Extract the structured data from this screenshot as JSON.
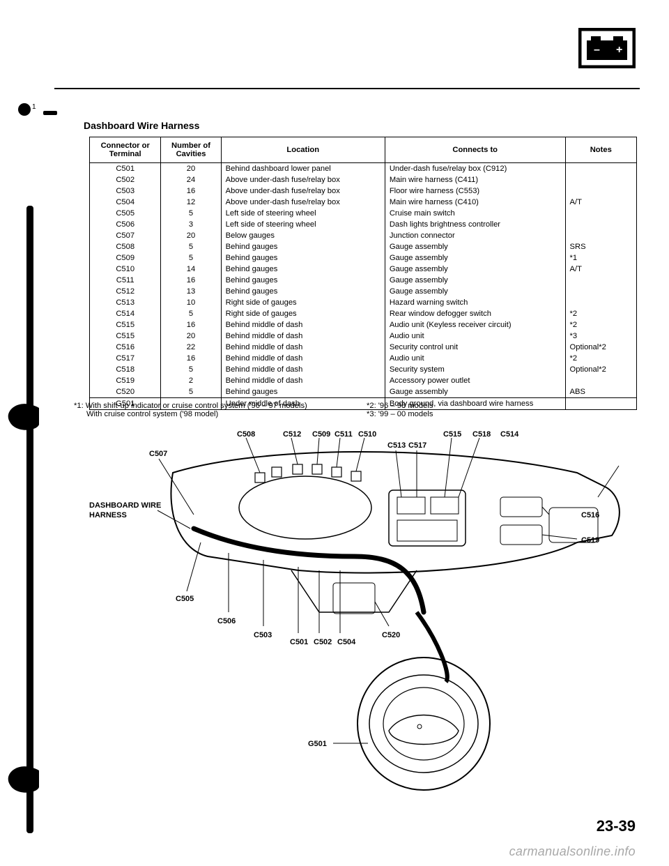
{
  "section_title": "Dashboard Wire Harness",
  "table": {
    "headers": [
      "Connector or Terminal",
      "Number of Cavities",
      "Location",
      "Connects to",
      "Notes"
    ],
    "rows": [
      [
        "C501",
        "20",
        "Behind dashboard lower panel",
        "Under-dash fuse/relay box (C912)",
        ""
      ],
      [
        "C502",
        "24",
        "Above under-dash fuse/relay box",
        "Main wire harness (C411)",
        ""
      ],
      [
        "C503",
        "16",
        "Above under-dash fuse/relay box",
        "Floor wire harness (C553)",
        ""
      ],
      [
        "C504",
        "12",
        "Above under-dash fuse/relay box",
        "Main wire harness (C410)",
        "A/T"
      ],
      [
        "C505",
        "5",
        "Left side of steering wheel",
        "Cruise main switch",
        ""
      ],
      [
        "C506",
        "3",
        "Left side of steering wheel",
        "Dash lights brightness controller",
        ""
      ],
      [
        "C507",
        "20",
        "Below gauges",
        "Junction connector",
        ""
      ],
      [
        "C508",
        "5",
        "Behind gauges",
        "Gauge assembly",
        "SRS"
      ],
      [
        "C509",
        "5",
        "Behind gauges",
        "Gauge assembly",
        "*1"
      ],
      [
        "C510",
        "14",
        "Behind gauges",
        "Gauge assembly",
        "A/T"
      ],
      [
        "C511",
        "16",
        "Behind gauges",
        "Gauge assembly",
        ""
      ],
      [
        "C512",
        "13",
        "Behind gauges",
        "Gauge assembly",
        ""
      ],
      [
        "C513",
        "10",
        "Right side of gauges",
        "Hazard warning switch",
        ""
      ],
      [
        "C514",
        "5",
        "Right side of gauges",
        "Rear window defogger switch",
        "*2"
      ],
      [
        "C515",
        "16",
        "Behind middle of dash",
        "Audio unit (Keyless receiver circuit)",
        "*2"
      ],
      [
        "C515",
        "20",
        "Behind middle of dash",
        "Audio unit",
        "*3"
      ],
      [
        "C516",
        "22",
        "Behind middle of dash",
        "Security control unit",
        "Optional*2"
      ],
      [
        "C517",
        "16",
        "Behind middle of dash",
        "Audio unit",
        "*2"
      ],
      [
        "C518",
        "5",
        "Behind middle of dash",
        "Security system",
        "Optional*2"
      ],
      [
        "C519",
        "2",
        "Behind middle of dash",
        "Accessory power outlet",
        ""
      ],
      [
        "C520",
        "5",
        "Behind gauges",
        "Gauge assembly",
        "ABS"
      ]
    ],
    "ground_row": [
      "G501",
      "",
      "Under middle of dash",
      "Body ground, via dashboard wire harness",
      ""
    ]
  },
  "footnotes": {
    "fn1": "*1: With shift-up indicator or cruise control system ('96 – 97 models)",
    "fn1b": "With cruise control system ('98 model)",
    "fn2": "*2: '96 – 98 models",
    "fn3": "*3: '99 – 00 models"
  },
  "diagram_labels": {
    "harness": "DASHBOARD WIRE HARNESS",
    "c501": "C501",
    "c502": "C502",
    "c503": "C503",
    "c504": "C504",
    "c505": "C505",
    "c506": "C506",
    "c507": "C507",
    "c508": "C508",
    "c509": "C509",
    "c510": "C510",
    "c511": "C511",
    "c512": "C512",
    "c513": "C513",
    "c514": "C514",
    "c515": "C515",
    "c516": "C516",
    "c517": "C517",
    "c518": "C518",
    "c519": "C519",
    "c520": "C520",
    "g501": "G501"
  },
  "page_number": "23-39",
  "watermark": "carmanualsonline.info",
  "battery": {
    "minus": "–",
    "plus": "+"
  },
  "colors": {
    "stroke": "#000000",
    "fill_light": "#ffffff",
    "watermark": "#a8a8a8"
  }
}
